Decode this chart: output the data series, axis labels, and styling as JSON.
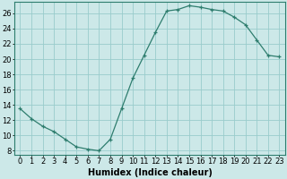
{
  "x": [
    0,
    1,
    2,
    3,
    4,
    5,
    6,
    7,
    8,
    9,
    10,
    11,
    12,
    13,
    14,
    15,
    16,
    17,
    18,
    19,
    20,
    21,
    22,
    23
  ],
  "y": [
    13.5,
    12.2,
    11.2,
    10.5,
    9.5,
    8.5,
    8.2,
    8.0,
    9.5,
    13.5,
    17.5,
    20.5,
    23.5,
    26.3,
    26.5,
    27.0,
    26.8,
    26.5,
    26.3,
    25.5,
    24.5,
    22.5,
    20.5,
    20.3
  ],
  "line_color": "#2e7d6e",
  "marker": "+",
  "marker_size": 3,
  "bg_color": "#cce8e8",
  "grid_color": "#99cccc",
  "xlabel": "Humidex (Indice chaleur)",
  "ylabel_ticks": [
    8,
    10,
    12,
    14,
    16,
    18,
    20,
    22,
    24,
    26
  ],
  "xlim": [
    -0.5,
    23.5
  ],
  "ylim": [
    7.5,
    27.5
  ],
  "xlabel_fontsize": 7,
  "tick_fontsize": 6
}
